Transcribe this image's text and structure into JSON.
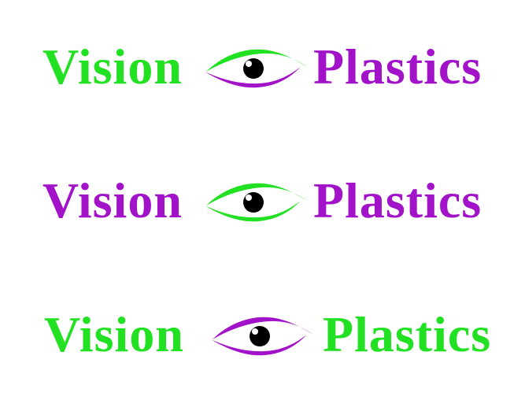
{
  "logos": [
    {
      "left_text": "Vision",
      "right_text": "Plastics",
      "left_color": "#22e022",
      "right_color": "#a112c8",
      "eye_top_color": "#22e022",
      "eye_bottom_color": "#a112c8",
      "pupil_color": "#000000",
      "icon": "eye-icon"
    },
    {
      "left_text": "Vision",
      "right_text": "Plastics",
      "left_color": "#a112c8",
      "right_color": "#a112c8",
      "eye_top_color": "#22e022",
      "eye_bottom_color": "#22e022",
      "pupil_color": "#000000",
      "icon": "eye-icon"
    },
    {
      "left_text": "Vision",
      "right_text": "Plastics",
      "left_color": "#22e022",
      "right_color": "#22e022",
      "eye_top_color": "#a112c8",
      "eye_bottom_color": "#a112c8",
      "pupil_color": "#000000",
      "icon": "eye-icon"
    }
  ]
}
